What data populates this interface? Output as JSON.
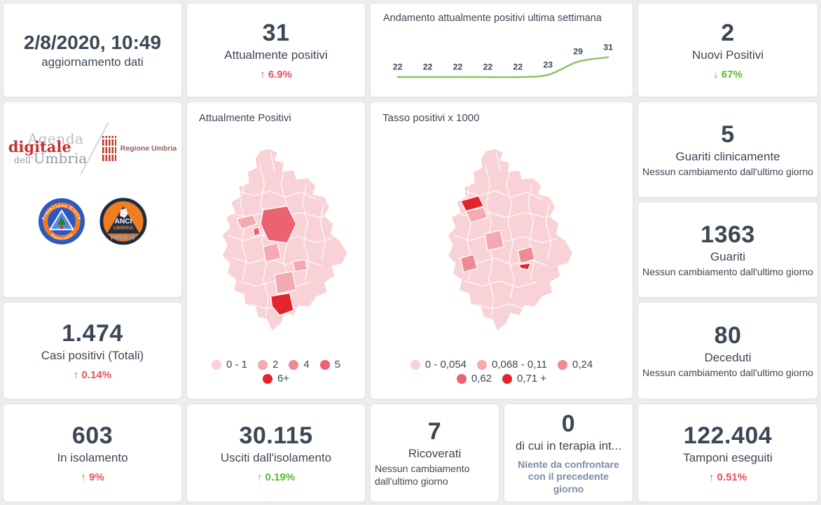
{
  "palette": {
    "background": "#ededed",
    "card_background": "#ffffff",
    "text_dark": "#3b4754",
    "delta_red": "#e8505b",
    "delta_green": "#5cb832",
    "line_green": "#8fc162",
    "note_blue_gray": "#7b8ba5",
    "choropleth": [
      "#f8d2d6",
      "#f5a9b0",
      "#ef8a93",
      "#eb6270",
      "#e3242f"
    ]
  },
  "cards": {
    "updated": {
      "value": "2/8/2020, 10:49",
      "label": "aggiornamento dati"
    },
    "attualmente": {
      "value": "31",
      "label": "Attualmente positivi",
      "delta": "↑  6.9%",
      "delta_color": "#e8505b"
    },
    "nuovi": {
      "value": "2",
      "label": "Nuovi Positivi",
      "delta": "↓  67%",
      "delta_color": "#5cb832"
    },
    "guariti_clinicamente": {
      "value": "5",
      "label": "Guariti clinicamente",
      "note": "Nessun cambiamento dall'ultimo giorno"
    },
    "guariti": {
      "value": "1363",
      "label": "Guariti",
      "note": "Nessun cambiamento dall'ultimo giorno"
    },
    "deceduti": {
      "value": "80",
      "label": "Deceduti",
      "note": "Nessun cambiamento dall'ultimo giorno"
    },
    "casi_totali": {
      "value": "1.474",
      "label": "Casi positivi (Totali)",
      "delta": "↑  0.14%",
      "delta_color": "#e8505b"
    },
    "isolamento": {
      "value": "603",
      "label": "In isolamento",
      "delta": "↑  9%",
      "delta_color": "#e8505b"
    },
    "usciti": {
      "value": "30.115",
      "label": "Usciti dall'isolamento",
      "delta": "↑  0.19%",
      "delta_color": "#5cb832"
    },
    "ricoverati": {
      "value": "7",
      "label": "Ricoverati",
      "note": "Nessun cambiamento dall'ultimo giorno"
    },
    "terapia": {
      "value": "0",
      "label": "di cui in terapia int...",
      "note": "Niente da confrontare con il precedente giorno",
      "note_color": "#7b8ba5"
    },
    "tamponi": {
      "value": "122.404",
      "label": "Tamponi eseguiti",
      "delta": "↑  0.51%",
      "delta_color": "#e8505b"
    }
  },
  "chart_data": {
    "type": "line",
    "title": "Andamento attualmente positivi ultima settimana",
    "x": [
      1,
      2,
      3,
      4,
      5,
      6,
      7,
      8
    ],
    "values": [
      22,
      22,
      22,
      22,
      22,
      23,
      29,
      31
    ],
    "ylim": [
      20,
      34
    ],
    "grid": false,
    "legend": "none",
    "line_color": "#8fc162",
    "label_color": "#3b4754"
  },
  "maps": {
    "attualmente": {
      "title": "Attualmente Positivi",
      "legend": {
        "labels": [
          "0 - 1",
          "2",
          "4",
          "5",
          "6+"
        ],
        "colors": [
          "#f8d2d6",
          "#f5a9b0",
          "#ef8a93",
          "#eb6270",
          "#e3242f"
        ]
      }
    },
    "tasso": {
      "title": "Tasso positivi x 1000",
      "legend": {
        "labels": [
          "0 - 0,054",
          "0,068 - 0,11",
          "0,24",
          "0,62",
          "0,71 +"
        ],
        "colors": [
          "#f8d2d6",
          "#f5a9b0",
          "#ef8a93",
          "#eb6270",
          "#e3242f"
        ]
      }
    }
  },
  "logos": {
    "agenda": {
      "line1": "Agenda",
      "line2": "digitale",
      "line3a": "dell'",
      "line3b": "Umbria"
    },
    "regione": {
      "label": "Regione Umbria"
    },
    "protezione": {
      "top": "Protezione Civile",
      "bottom": "Regione Umbria"
    },
    "anci": {
      "line1": "ANCI",
      "line2": "UMBRIA",
      "line3": "PROCIV"
    }
  }
}
